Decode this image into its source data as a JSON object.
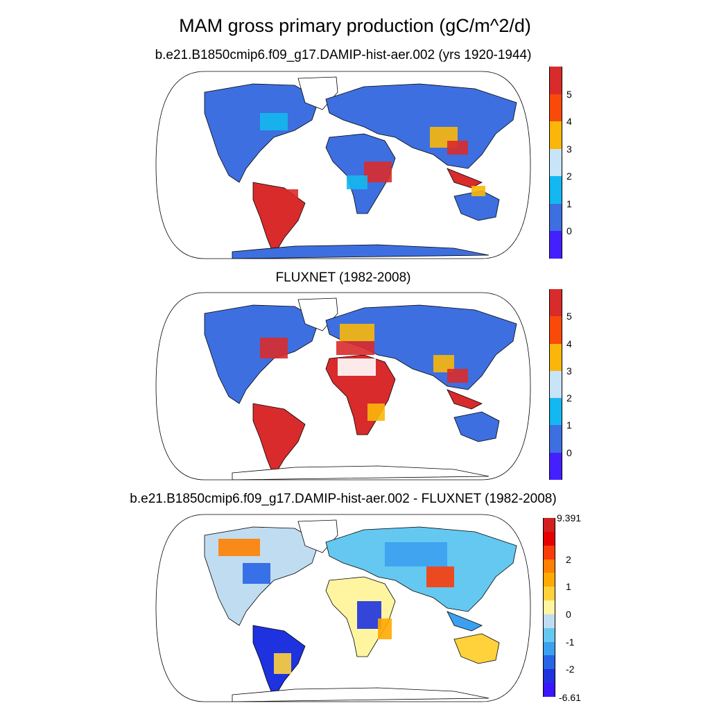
{
  "title": "MAM gross primary production (gC/m^2/d)",
  "colors": {
    "land_low": "#3d6fe0",
    "land_mid": "#14b8f0",
    "land_pale": "#c8e4f8",
    "land_orange": "#fab70a",
    "land_high": "#fa4a0a",
    "land_red": "#d92b2b",
    "coast": "#000000"
  },
  "panels": [
    {
      "title": "b.e21.B1850cmip6.f09_g17.DAMIP-hist-aer.002 (yrs 1920-1944)",
      "colorbar": {
        "colors": [
          "#d92b2b",
          "#fa4a0a",
          "#fab70a",
          "#c8e4f8",
          "#14b8f0",
          "#3d6fe0",
          "#4520ff"
        ],
        "labels": [
          "5",
          "4",
          "3",
          "2",
          "1",
          "0"
        ]
      }
    },
    {
      "title": "FLUXNET (1982-2008)",
      "colorbar": {
        "colors": [
          "#d92b2b",
          "#fa4a0a",
          "#fab70a",
          "#c8e4f8",
          "#14b8f0",
          "#3d6fe0",
          "#4520ff"
        ],
        "labels": [
          "5",
          "4",
          "3",
          "2",
          "1",
          "0"
        ]
      }
    },
    {
      "title": "b.e21.B1850cmip6.f09_g17.DAMIP-hist-aer.002 - FLUXNET (1982-2008)",
      "colorbar": {
        "colors": [
          "#d12020",
          "#e60000",
          "#fa3c0a",
          "#ff7f00",
          "#ffaa00",
          "#ffd23c",
          "#fff5a0",
          "#c0dcf0",
          "#64c8f0",
          "#3ca0f0",
          "#2864e6",
          "#1e32e0",
          "#3c14ff"
        ],
        "top_label": "9.391",
        "labels": [
          "2",
          "1",
          "0",
          "-1",
          "-2"
        ],
        "bottom_label": "-6.61"
      }
    }
  ]
}
